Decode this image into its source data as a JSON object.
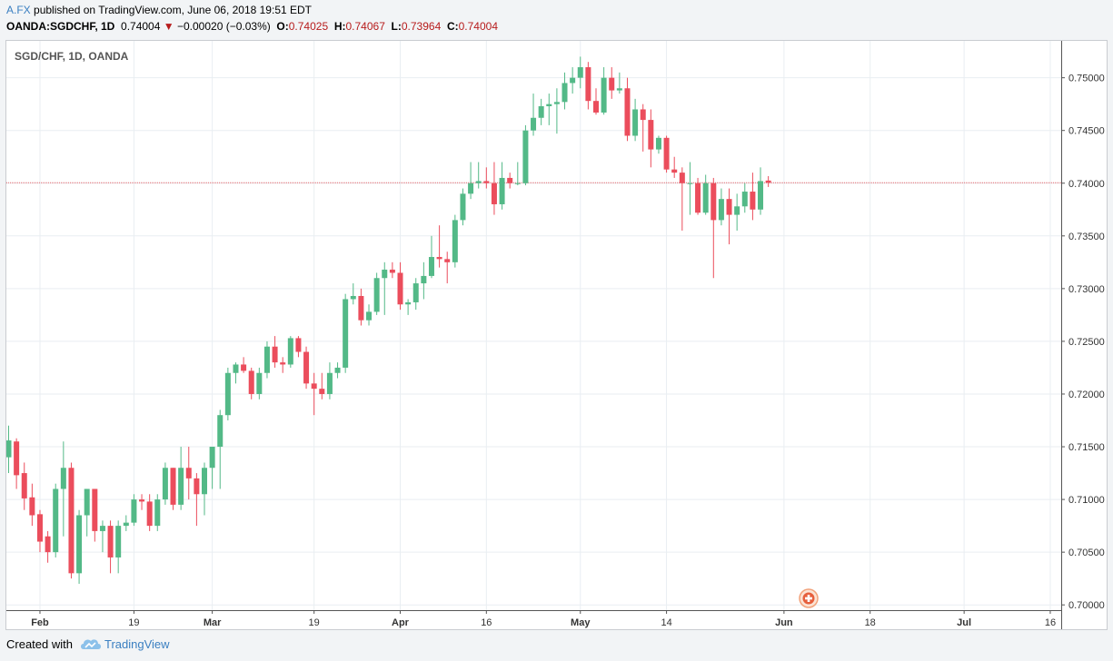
{
  "header": {
    "author": "A.FX",
    "published_text": "published on TradingView.com, June 06, 2018 19:51 EDT",
    "symbol_interval": "OANDA:SGDCHF, 1D",
    "last": "0.74004",
    "change_arrow": "▼",
    "change": "−0.00020 (−0.03%)",
    "o_label": "O:",
    "o_value": "0.74025",
    "h_label": "H:",
    "h_value": "0.74067",
    "l_label": "L:",
    "l_value": "0.73964",
    "c_label": "C:",
    "c_value": "0.74004"
  },
  "footer": {
    "created_with": "Created with",
    "brand": "TradingView"
  },
  "colors": {
    "up": "#53b987",
    "down": "#eb4d5c",
    "grid": "#e9eef2",
    "price_line": "#e8666b"
  },
  "chart_data": {
    "type": "candlestick",
    "title": "SGD/CHF, 1D, OANDA",
    "ylim": [
      0.6995,
      0.7535
    ],
    "y_ticks": [
      "0.70000",
      "0.70500",
      "0.71000",
      "0.71500",
      "0.72000",
      "0.72500",
      "0.73000",
      "0.73500",
      "0.74000",
      "0.74500",
      "0.75000"
    ],
    "x_ticks": [
      {
        "label": "Feb",
        "i": 4,
        "bold": true
      },
      {
        "label": "19",
        "i": 16,
        "bold": false
      },
      {
        "label": "Mar",
        "i": 26,
        "bold": true
      },
      {
        "label": "19",
        "i": 39,
        "bold": false
      },
      {
        "label": "Apr",
        "i": 50,
        "bold": true
      },
      {
        "label": "16",
        "i": 61,
        "bold": false
      },
      {
        "label": "May",
        "i": 73,
        "bold": true
      },
      {
        "label": "14",
        "i": 84,
        "bold": false
      },
      {
        "label": "Jun",
        "i": 99,
        "bold": true
      },
      {
        "label": "18",
        "i": 110,
        "bold": false
      },
      {
        "label": "Jul",
        "i": 122,
        "bold": true
      },
      {
        "label": "16",
        "i": 133,
        "bold": false
      }
    ],
    "last_price": 0.74004,
    "candles": [
      {
        "o": 0.714,
        "h": 0.717,
        "l": 0.7125,
        "c": 0.7156
      },
      {
        "o": 0.7155,
        "h": 0.7158,
        "l": 0.711,
        "c": 0.7123
      },
      {
        "o": 0.7125,
        "h": 0.7135,
        "l": 0.709,
        "c": 0.7101
      },
      {
        "o": 0.7102,
        "h": 0.7115,
        "l": 0.7075,
        "c": 0.7085
      },
      {
        "o": 0.7086,
        "h": 0.709,
        "l": 0.705,
        "c": 0.706
      },
      {
        "o": 0.7065,
        "h": 0.707,
        "l": 0.704,
        "c": 0.705
      },
      {
        "o": 0.705,
        "h": 0.7115,
        "l": 0.7045,
        "c": 0.711
      },
      {
        "o": 0.711,
        "h": 0.7155,
        "l": 0.7065,
        "c": 0.713
      },
      {
        "o": 0.713,
        "h": 0.7135,
        "l": 0.7025,
        "c": 0.703
      },
      {
        "o": 0.703,
        "h": 0.709,
        "l": 0.702,
        "c": 0.7085
      },
      {
        "o": 0.7085,
        "h": 0.711,
        "l": 0.7065,
        "c": 0.711
      },
      {
        "o": 0.711,
        "h": 0.711,
        "l": 0.706,
        "c": 0.707
      },
      {
        "o": 0.707,
        "h": 0.708,
        "l": 0.705,
        "c": 0.7075
      },
      {
        "o": 0.7075,
        "h": 0.708,
        "l": 0.703,
        "c": 0.7045
      },
      {
        "o": 0.7045,
        "h": 0.708,
        "l": 0.703,
        "c": 0.7075
      },
      {
        "o": 0.7075,
        "h": 0.7085,
        "l": 0.707,
        "c": 0.7078
      },
      {
        "o": 0.7078,
        "h": 0.7105,
        "l": 0.7075,
        "c": 0.71
      },
      {
        "o": 0.71,
        "h": 0.7105,
        "l": 0.709,
        "c": 0.7098
      },
      {
        "o": 0.7098,
        "h": 0.7105,
        "l": 0.707,
        "c": 0.7075
      },
      {
        "o": 0.7075,
        "h": 0.7105,
        "l": 0.707,
        "c": 0.71
      },
      {
        "o": 0.71,
        "h": 0.7135,
        "l": 0.7095,
        "c": 0.713
      },
      {
        "o": 0.713,
        "h": 0.713,
        "l": 0.709,
        "c": 0.7095
      },
      {
        "o": 0.7095,
        "h": 0.715,
        "l": 0.709,
        "c": 0.713
      },
      {
        "o": 0.713,
        "h": 0.715,
        "l": 0.71,
        "c": 0.712
      },
      {
        "o": 0.712,
        "h": 0.7125,
        "l": 0.7075,
        "c": 0.7105
      },
      {
        "o": 0.7105,
        "h": 0.7135,
        "l": 0.7085,
        "c": 0.713
      },
      {
        "o": 0.713,
        "h": 0.715,
        "l": 0.711,
        "c": 0.715
      },
      {
        "o": 0.715,
        "h": 0.7185,
        "l": 0.711,
        "c": 0.718
      },
      {
        "o": 0.718,
        "h": 0.7225,
        "l": 0.7175,
        "c": 0.722
      },
      {
        "o": 0.722,
        "h": 0.723,
        "l": 0.721,
        "c": 0.7228
      },
      {
        "o": 0.7228,
        "h": 0.7235,
        "l": 0.722,
        "c": 0.7222
      },
      {
        "o": 0.7222,
        "h": 0.7225,
        "l": 0.7195,
        "c": 0.72
      },
      {
        "o": 0.72,
        "h": 0.7225,
        "l": 0.7195,
        "c": 0.722
      },
      {
        "o": 0.722,
        "h": 0.725,
        "l": 0.7215,
        "c": 0.7245
      },
      {
        "o": 0.7245,
        "h": 0.7255,
        "l": 0.7225,
        "c": 0.723
      },
      {
        "o": 0.723,
        "h": 0.7235,
        "l": 0.722,
        "c": 0.7228
      },
      {
        "o": 0.7228,
        "h": 0.7255,
        "l": 0.7225,
        "c": 0.7253
      },
      {
        "o": 0.7253,
        "h": 0.7255,
        "l": 0.7235,
        "c": 0.724
      },
      {
        "o": 0.724,
        "h": 0.7245,
        "l": 0.7205,
        "c": 0.721
      },
      {
        "o": 0.721,
        "h": 0.722,
        "l": 0.718,
        "c": 0.7205
      },
      {
        "o": 0.7205,
        "h": 0.722,
        "l": 0.7195,
        "c": 0.72
      },
      {
        "o": 0.72,
        "h": 0.723,
        "l": 0.7195,
        "c": 0.722
      },
      {
        "o": 0.722,
        "h": 0.723,
        "l": 0.7215,
        "c": 0.7225
      },
      {
        "o": 0.7225,
        "h": 0.7295,
        "l": 0.722,
        "c": 0.729
      },
      {
        "o": 0.729,
        "h": 0.7305,
        "l": 0.7285,
        "c": 0.7293
      },
      {
        "o": 0.7293,
        "h": 0.73,
        "l": 0.7265,
        "c": 0.727
      },
      {
        "o": 0.727,
        "h": 0.7285,
        "l": 0.7265,
        "c": 0.7278
      },
      {
        "o": 0.7278,
        "h": 0.7315,
        "l": 0.7275,
        "c": 0.731
      },
      {
        "o": 0.731,
        "h": 0.7325,
        "l": 0.7275,
        "c": 0.7318
      },
      {
        "o": 0.7318,
        "h": 0.7325,
        "l": 0.731,
        "c": 0.7315
      },
      {
        "o": 0.7315,
        "h": 0.7325,
        "l": 0.728,
        "c": 0.7285
      },
      {
        "o": 0.7285,
        "h": 0.729,
        "l": 0.7275,
        "c": 0.7287
      },
      {
        "o": 0.7287,
        "h": 0.731,
        "l": 0.728,
        "c": 0.7305
      },
      {
        "o": 0.7305,
        "h": 0.7325,
        "l": 0.729,
        "c": 0.7312
      },
      {
        "o": 0.7312,
        "h": 0.735,
        "l": 0.731,
        "c": 0.733
      },
      {
        "o": 0.733,
        "h": 0.736,
        "l": 0.732,
        "c": 0.7328
      },
      {
        "o": 0.7328,
        "h": 0.7335,
        "l": 0.7305,
        "c": 0.7325
      },
      {
        "o": 0.7325,
        "h": 0.737,
        "l": 0.732,
        "c": 0.7365
      },
      {
        "o": 0.7365,
        "h": 0.7395,
        "l": 0.736,
        "c": 0.739
      },
      {
        "o": 0.739,
        "h": 0.742,
        "l": 0.7385,
        "c": 0.74
      },
      {
        "o": 0.74,
        "h": 0.742,
        "l": 0.7395,
        "c": 0.7402
      },
      {
        "o": 0.7402,
        "h": 0.7415,
        "l": 0.7395,
        "c": 0.74
      },
      {
        "o": 0.74,
        "h": 0.742,
        "l": 0.737,
        "c": 0.738
      },
      {
        "o": 0.738,
        "h": 0.742,
        "l": 0.7375,
        "c": 0.7405
      },
      {
        "o": 0.7405,
        "h": 0.741,
        "l": 0.7395,
        "c": 0.74
      },
      {
        "o": 0.74,
        "h": 0.742,
        "l": 0.7398,
        "c": 0.74
      },
      {
        "o": 0.74,
        "h": 0.7455,
        "l": 0.7398,
        "c": 0.745
      },
      {
        "o": 0.745,
        "h": 0.7485,
        "l": 0.7445,
        "c": 0.7462
      },
      {
        "o": 0.7462,
        "h": 0.748,
        "l": 0.7455,
        "c": 0.7473
      },
      {
        "o": 0.7473,
        "h": 0.7485,
        "l": 0.7455,
        "c": 0.7475
      },
      {
        "o": 0.7475,
        "h": 0.749,
        "l": 0.7447,
        "c": 0.7477
      },
      {
        "o": 0.7477,
        "h": 0.7505,
        "l": 0.747,
        "c": 0.7495
      },
      {
        "o": 0.7495,
        "h": 0.751,
        "l": 0.7485,
        "c": 0.75
      },
      {
        "o": 0.75,
        "h": 0.752,
        "l": 0.749,
        "c": 0.751
      },
      {
        "o": 0.751,
        "h": 0.7515,
        "l": 0.747,
        "c": 0.7478
      },
      {
        "o": 0.7478,
        "h": 0.749,
        "l": 0.7465,
        "c": 0.7467
      },
      {
        "o": 0.7467,
        "h": 0.751,
        "l": 0.7465,
        "c": 0.75
      },
      {
        "o": 0.75,
        "h": 0.751,
        "l": 0.748,
        "c": 0.7488
      },
      {
        "o": 0.7488,
        "h": 0.7505,
        "l": 0.7485,
        "c": 0.749
      },
      {
        "o": 0.749,
        "h": 0.75,
        "l": 0.744,
        "c": 0.7445
      },
      {
        "o": 0.7445,
        "h": 0.748,
        "l": 0.744,
        "c": 0.747
      },
      {
        "o": 0.747,
        "h": 0.7475,
        "l": 0.743,
        "c": 0.746
      },
      {
        "o": 0.746,
        "h": 0.747,
        "l": 0.7415,
        "c": 0.7432
      },
      {
        "o": 0.7432,
        "h": 0.7445,
        "l": 0.7428,
        "c": 0.7443
      },
      {
        "o": 0.7443,
        "h": 0.7445,
        "l": 0.741,
        "c": 0.7413
      },
      {
        "o": 0.7413,
        "h": 0.7425,
        "l": 0.7405,
        "c": 0.741
      },
      {
        "o": 0.741,
        "h": 0.7415,
        "l": 0.7355,
        "c": 0.74
      },
      {
        "o": 0.74,
        "h": 0.742,
        "l": 0.737,
        "c": 0.74
      },
      {
        "o": 0.74,
        "h": 0.7405,
        "l": 0.737,
        "c": 0.7372
      },
      {
        "o": 0.7372,
        "h": 0.7408,
        "l": 0.737,
        "c": 0.74
      },
      {
        "o": 0.74,
        "h": 0.7405,
        "l": 0.731,
        "c": 0.7365
      },
      {
        "o": 0.7365,
        "h": 0.7395,
        "l": 0.736,
        "c": 0.7385
      },
      {
        "o": 0.7385,
        "h": 0.7395,
        "l": 0.7342,
        "c": 0.737
      },
      {
        "o": 0.737,
        "h": 0.739,
        "l": 0.7355,
        "c": 0.7378
      },
      {
        "o": 0.7378,
        "h": 0.74,
        "l": 0.7372,
        "c": 0.7392
      },
      {
        "o": 0.7392,
        "h": 0.741,
        "l": 0.7365,
        "c": 0.7375
      },
      {
        "o": 0.7375,
        "h": 0.7415,
        "l": 0.737,
        "c": 0.7402
      },
      {
        "o": 0.74025,
        "h": 0.74067,
        "l": 0.73964,
        "c": 0.74004
      }
    ]
  }
}
